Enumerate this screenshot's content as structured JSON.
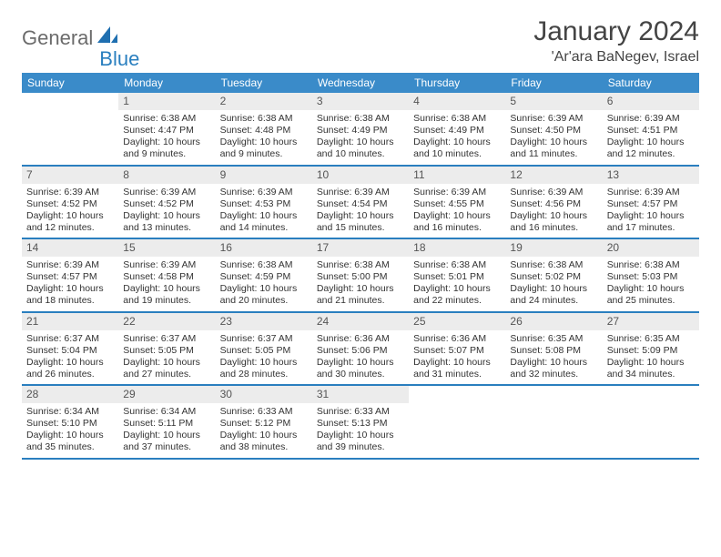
{
  "logo": {
    "text1": "General",
    "text2": "Blue"
  },
  "title": "January 2024",
  "location": "'Ar'ara BaNegev, Israel",
  "colors": {
    "header_bg": "#3a8bc9",
    "accent_line": "#2a7fbf",
    "daynum_bg": "#ececec",
    "text": "#333333",
    "logo_gray": "#6b6b6b",
    "logo_blue": "#2a7fbf"
  },
  "days_of_week": [
    "Sunday",
    "Monday",
    "Tuesday",
    "Wednesday",
    "Thursday",
    "Friday",
    "Saturday"
  ],
  "weeks": [
    [
      {
        "n": "",
        "sunrise": "",
        "sunset": "",
        "daylight": ""
      },
      {
        "n": "1",
        "sunrise": "Sunrise: 6:38 AM",
        "sunset": "Sunset: 4:47 PM",
        "daylight": "Daylight: 10 hours and 9 minutes."
      },
      {
        "n": "2",
        "sunrise": "Sunrise: 6:38 AM",
        "sunset": "Sunset: 4:48 PM",
        "daylight": "Daylight: 10 hours and 9 minutes."
      },
      {
        "n": "3",
        "sunrise": "Sunrise: 6:38 AM",
        "sunset": "Sunset: 4:49 PM",
        "daylight": "Daylight: 10 hours and 10 minutes."
      },
      {
        "n": "4",
        "sunrise": "Sunrise: 6:38 AM",
        "sunset": "Sunset: 4:49 PM",
        "daylight": "Daylight: 10 hours and 10 minutes."
      },
      {
        "n": "5",
        "sunrise": "Sunrise: 6:39 AM",
        "sunset": "Sunset: 4:50 PM",
        "daylight": "Daylight: 10 hours and 11 minutes."
      },
      {
        "n": "6",
        "sunrise": "Sunrise: 6:39 AM",
        "sunset": "Sunset: 4:51 PM",
        "daylight": "Daylight: 10 hours and 12 minutes."
      }
    ],
    [
      {
        "n": "7",
        "sunrise": "Sunrise: 6:39 AM",
        "sunset": "Sunset: 4:52 PM",
        "daylight": "Daylight: 10 hours and 12 minutes."
      },
      {
        "n": "8",
        "sunrise": "Sunrise: 6:39 AM",
        "sunset": "Sunset: 4:52 PM",
        "daylight": "Daylight: 10 hours and 13 minutes."
      },
      {
        "n": "9",
        "sunrise": "Sunrise: 6:39 AM",
        "sunset": "Sunset: 4:53 PM",
        "daylight": "Daylight: 10 hours and 14 minutes."
      },
      {
        "n": "10",
        "sunrise": "Sunrise: 6:39 AM",
        "sunset": "Sunset: 4:54 PM",
        "daylight": "Daylight: 10 hours and 15 minutes."
      },
      {
        "n": "11",
        "sunrise": "Sunrise: 6:39 AM",
        "sunset": "Sunset: 4:55 PM",
        "daylight": "Daylight: 10 hours and 16 minutes."
      },
      {
        "n": "12",
        "sunrise": "Sunrise: 6:39 AM",
        "sunset": "Sunset: 4:56 PM",
        "daylight": "Daylight: 10 hours and 16 minutes."
      },
      {
        "n": "13",
        "sunrise": "Sunrise: 6:39 AM",
        "sunset": "Sunset: 4:57 PM",
        "daylight": "Daylight: 10 hours and 17 minutes."
      }
    ],
    [
      {
        "n": "14",
        "sunrise": "Sunrise: 6:39 AM",
        "sunset": "Sunset: 4:57 PM",
        "daylight": "Daylight: 10 hours and 18 minutes."
      },
      {
        "n": "15",
        "sunrise": "Sunrise: 6:39 AM",
        "sunset": "Sunset: 4:58 PM",
        "daylight": "Daylight: 10 hours and 19 minutes."
      },
      {
        "n": "16",
        "sunrise": "Sunrise: 6:38 AM",
        "sunset": "Sunset: 4:59 PM",
        "daylight": "Daylight: 10 hours and 20 minutes."
      },
      {
        "n": "17",
        "sunrise": "Sunrise: 6:38 AM",
        "sunset": "Sunset: 5:00 PM",
        "daylight": "Daylight: 10 hours and 21 minutes."
      },
      {
        "n": "18",
        "sunrise": "Sunrise: 6:38 AM",
        "sunset": "Sunset: 5:01 PM",
        "daylight": "Daylight: 10 hours and 22 minutes."
      },
      {
        "n": "19",
        "sunrise": "Sunrise: 6:38 AM",
        "sunset": "Sunset: 5:02 PM",
        "daylight": "Daylight: 10 hours and 24 minutes."
      },
      {
        "n": "20",
        "sunrise": "Sunrise: 6:38 AM",
        "sunset": "Sunset: 5:03 PM",
        "daylight": "Daylight: 10 hours and 25 minutes."
      }
    ],
    [
      {
        "n": "21",
        "sunrise": "Sunrise: 6:37 AM",
        "sunset": "Sunset: 5:04 PM",
        "daylight": "Daylight: 10 hours and 26 minutes."
      },
      {
        "n": "22",
        "sunrise": "Sunrise: 6:37 AM",
        "sunset": "Sunset: 5:05 PM",
        "daylight": "Daylight: 10 hours and 27 minutes."
      },
      {
        "n": "23",
        "sunrise": "Sunrise: 6:37 AM",
        "sunset": "Sunset: 5:05 PM",
        "daylight": "Daylight: 10 hours and 28 minutes."
      },
      {
        "n": "24",
        "sunrise": "Sunrise: 6:36 AM",
        "sunset": "Sunset: 5:06 PM",
        "daylight": "Daylight: 10 hours and 30 minutes."
      },
      {
        "n": "25",
        "sunrise": "Sunrise: 6:36 AM",
        "sunset": "Sunset: 5:07 PM",
        "daylight": "Daylight: 10 hours and 31 minutes."
      },
      {
        "n": "26",
        "sunrise": "Sunrise: 6:35 AM",
        "sunset": "Sunset: 5:08 PM",
        "daylight": "Daylight: 10 hours and 32 minutes."
      },
      {
        "n": "27",
        "sunrise": "Sunrise: 6:35 AM",
        "sunset": "Sunset: 5:09 PM",
        "daylight": "Daylight: 10 hours and 34 minutes."
      }
    ],
    [
      {
        "n": "28",
        "sunrise": "Sunrise: 6:34 AM",
        "sunset": "Sunset: 5:10 PM",
        "daylight": "Daylight: 10 hours and 35 minutes."
      },
      {
        "n": "29",
        "sunrise": "Sunrise: 6:34 AM",
        "sunset": "Sunset: 5:11 PM",
        "daylight": "Daylight: 10 hours and 37 minutes."
      },
      {
        "n": "30",
        "sunrise": "Sunrise: 6:33 AM",
        "sunset": "Sunset: 5:12 PM",
        "daylight": "Daylight: 10 hours and 38 minutes."
      },
      {
        "n": "31",
        "sunrise": "Sunrise: 6:33 AM",
        "sunset": "Sunset: 5:13 PM",
        "daylight": "Daylight: 10 hours and 39 minutes."
      },
      {
        "n": "",
        "sunrise": "",
        "sunset": "",
        "daylight": ""
      },
      {
        "n": "",
        "sunrise": "",
        "sunset": "",
        "daylight": ""
      },
      {
        "n": "",
        "sunrise": "",
        "sunset": "",
        "daylight": ""
      }
    ]
  ]
}
